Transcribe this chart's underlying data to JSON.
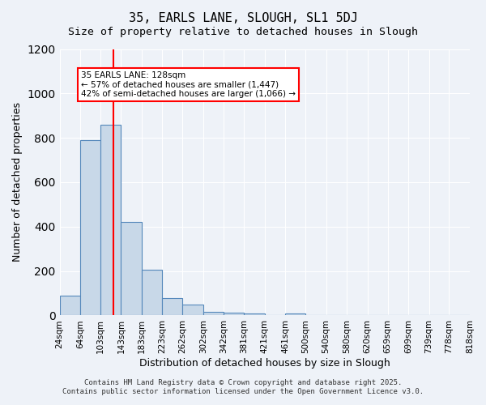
{
  "title1": "35, EARLS LANE, SLOUGH, SL1 5DJ",
  "title2": "Size of property relative to detached houses in Slough",
  "xlabel": "Distribution of detached houses by size in Slough",
  "ylabel": "Number of detached properties",
  "categories": [
    "24sqm",
    "64sqm",
    "103sqm",
    "143sqm",
    "183sqm",
    "223sqm",
    "262sqm",
    "302sqm",
    "342sqm",
    "381sqm",
    "421sqm",
    "461sqm",
    "500sqm",
    "540sqm",
    "580sqm",
    "620sqm",
    "659sqm",
    "699sqm",
    "739sqm",
    "778sqm",
    "818sqm"
  ],
  "hist_edges": [
    24,
    64,
    103,
    143,
    183,
    223,
    262,
    302,
    342,
    381,
    421,
    461,
    500,
    540,
    580,
    620,
    659,
    699,
    739,
    778,
    818
  ],
  "hist_counts": [
    90,
    790,
    860,
    420,
    205,
    80,
    50,
    18,
    14,
    8,
    0,
    8,
    0,
    0,
    0,
    0,
    0,
    0,
    0,
    0
  ],
  "bar_color": "#c8d8e8",
  "bar_edge_color": "#5588bb",
  "vline_x": 128,
  "vline_color": "red",
  "annotation_text": "35 EARLS LANE: 128sqm\n← 57% of detached houses are smaller (1,447)\n42% of semi-detached houses are larger (1,066) →",
  "annotation_box_color": "white",
  "annotation_box_edge": "red",
  "ylim": [
    0,
    1200
  ],
  "yticks": [
    0,
    200,
    400,
    600,
    800,
    1000,
    1200
  ],
  "bg_color": "#eef2f8",
  "footer1": "Contains HM Land Registry data © Crown copyright and database right 2025.",
  "footer2": "Contains public sector information licensed under the Open Government Licence v3.0."
}
